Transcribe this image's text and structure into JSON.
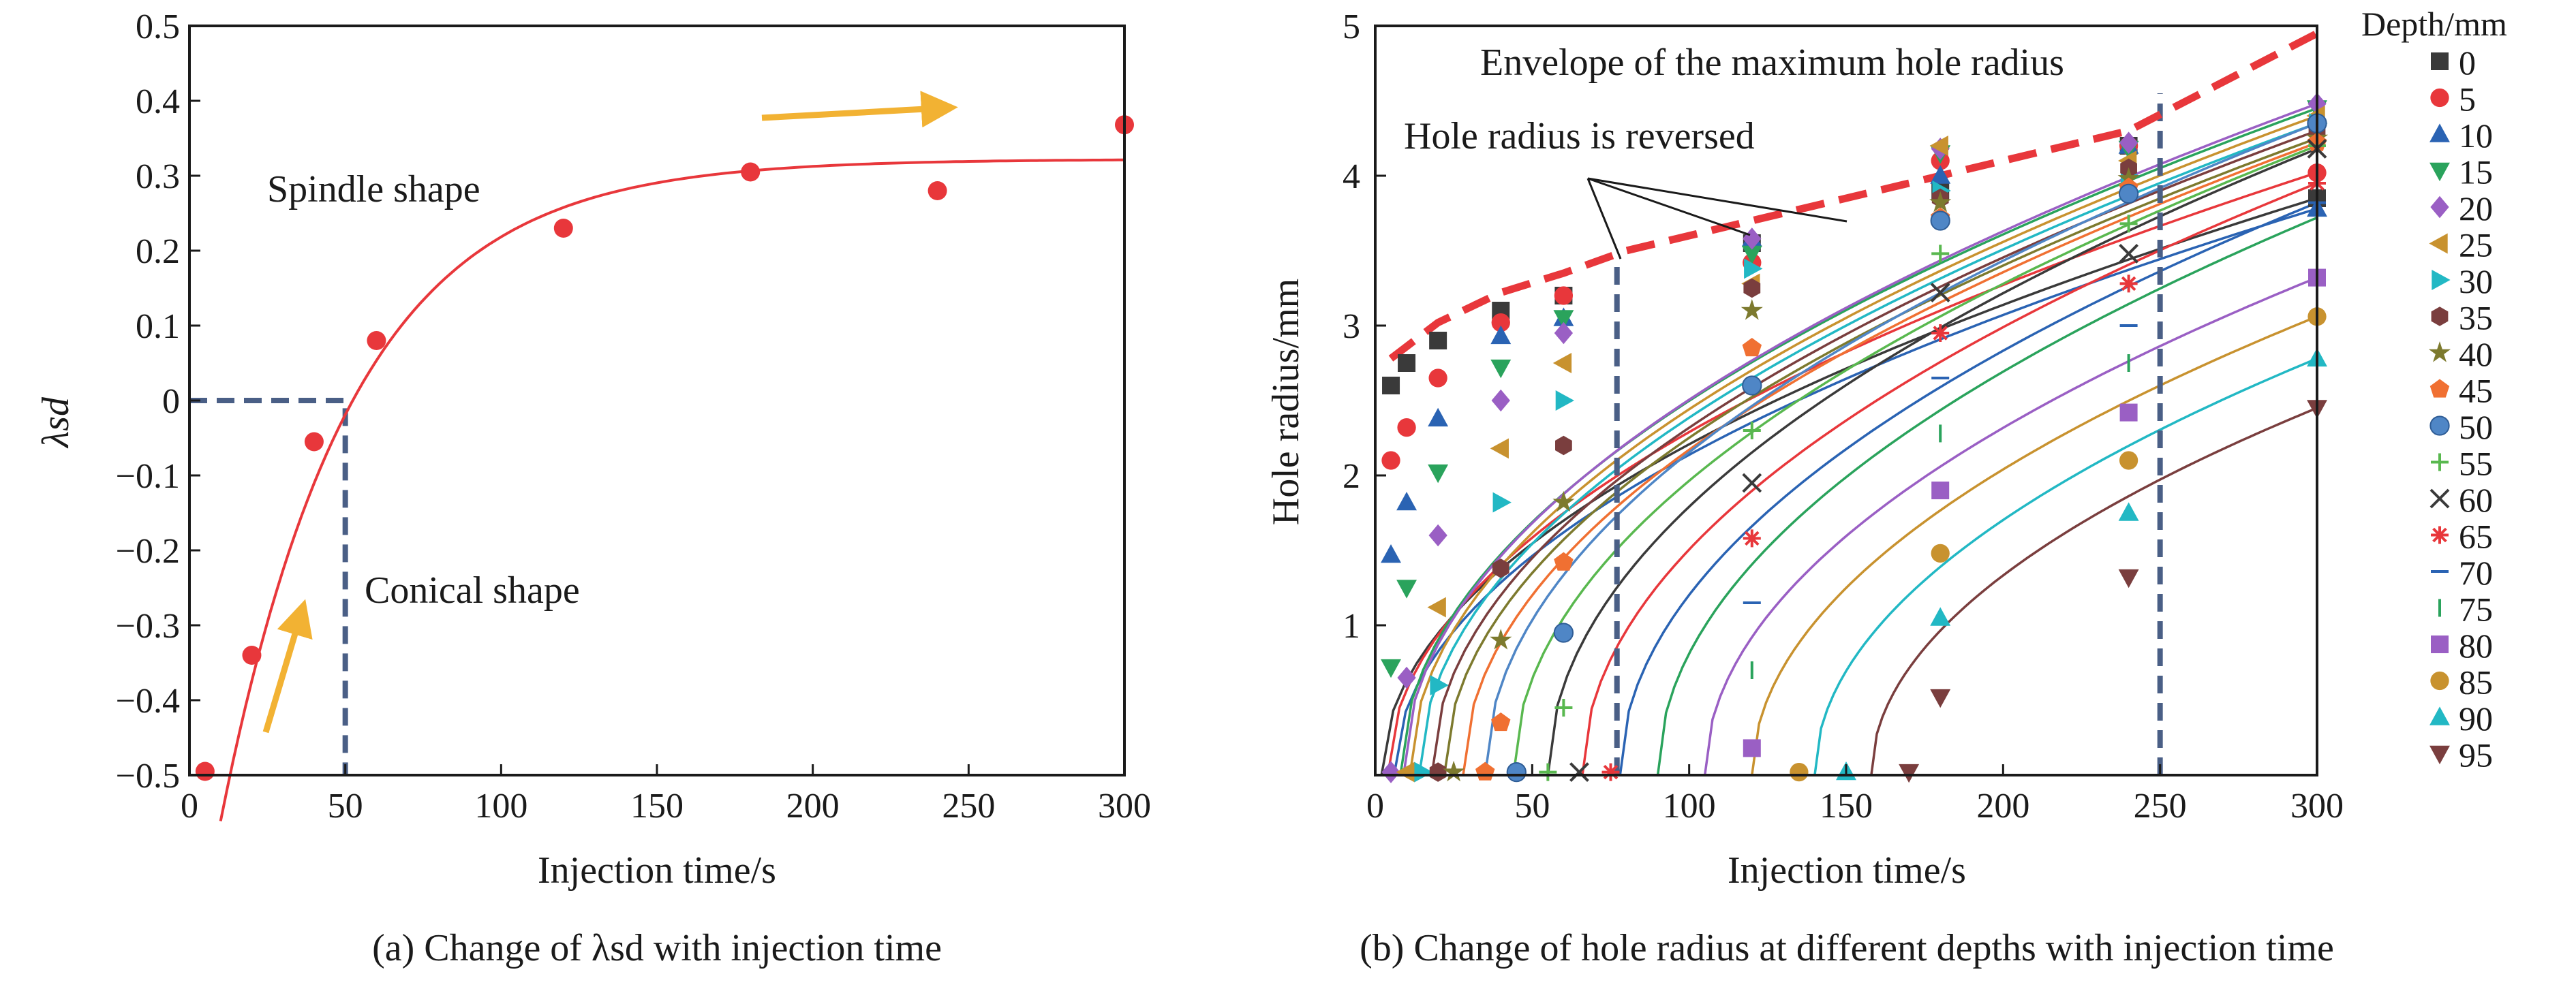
{
  "colors": {
    "axis": "#1a1a1a",
    "fit_a": "#e8373b",
    "points_a": "#e8373b",
    "dashed_guides": "#4a5f86",
    "arrow": "#f2b233",
    "envelope": "#e8373b"
  },
  "chart_data": [
    {
      "type": "scatter",
      "caption": "(a) Change of λsd with injection time",
      "xlabel": "Injection time/s",
      "ylabel": "λsd",
      "xlim": [
        0,
        300
      ],
      "ylim": [
        -0.5,
        0.5
      ],
      "xticks": [
        0,
        50,
        100,
        150,
        200,
        250,
        300
      ],
      "yticks": [
        -0.5,
        -0.4,
        -0.3,
        -0.2,
        -0.1,
        0,
        0.1,
        0.2,
        0.3,
        0.4,
        0.5
      ],
      "ytick_labels": [
        "−0.5",
        "−0.4",
        "−0.3",
        "−0.2",
        "−0.1",
        "0",
        "0.1",
        "0.2",
        "0.3",
        "0.4",
        "0.5"
      ],
      "points": [
        {
          "x": 5,
          "y": -0.495
        },
        {
          "x": 20,
          "y": -0.34
        },
        {
          "x": 40,
          "y": -0.055
        },
        {
          "x": 60,
          "y": 0.08
        },
        {
          "x": 120,
          "y": 0.23
        },
        {
          "x": 180,
          "y": 0.305
        },
        {
          "x": 240,
          "y": 0.28
        },
        {
          "x": 300,
          "y": 0.368
        }
      ],
      "fit_curve": {
        "asymptote": 0.322,
        "amplitude": 0.995,
        "tau": 42,
        "x0": 5
      },
      "guide_point": {
        "x": 50,
        "y": 0
      },
      "annotations": [
        "Spindle shape",
        "Conical shape"
      ],
      "grid": false
    },
    {
      "type": "scatter",
      "caption": "(b) Change of hole radius at different depths with injection time",
      "xlabel": "Injection time/s",
      "ylabel": "Hole radius/mm",
      "xlim": [
        0,
        300
      ],
      "ylim": [
        0,
        5
      ],
      "xticks": [
        0,
        50,
        100,
        150,
        200,
        250,
        300
      ],
      "yticks": [
        1,
        2,
        3,
        4,
        5
      ],
      "legend_title": "Depth/mm",
      "legend_position": "right",
      "vertical_guides": [
        77,
        250
      ],
      "annotations": [
        "Envelope of the maximum hole radius",
        "Hole radius is reversed"
      ],
      "envelope": [
        [
          5,
          2.78
        ],
        [
          20,
          3.02
        ],
        [
          40,
          3.22
        ],
        [
          60,
          3.35
        ],
        [
          80,
          3.5
        ],
        [
          120,
          3.7
        ],
        [
          180,
          4.0
        ],
        [
          240,
          4.3
        ],
        [
          300,
          4.95
        ]
      ],
      "series": [
        {
          "name": "0",
          "marker": "square",
          "color": "#3a3a3a",
          "t0": 2,
          "points": [
            [
              5,
              2.6
            ],
            [
              10,
              2.75
            ],
            [
              20,
              2.9
            ],
            [
              40,
              3.1
            ],
            [
              60,
              3.2
            ],
            [
              120,
              3.55
            ],
            [
              180,
              3.9
            ],
            [
              240,
              4.2
            ],
            [
              300,
              3.85
            ]
          ]
        },
        {
          "name": "5",
          "marker": "circle",
          "color": "#e8373b",
          "t0": 4,
          "points": [
            [
              5,
              2.1
            ],
            [
              10,
              2.32
            ],
            [
              20,
              2.65
            ],
            [
              40,
              3.02
            ],
            [
              60,
              3.2
            ],
            [
              120,
              3.42
            ],
            [
              180,
              4.1
            ],
            [
              240,
              4.2
            ],
            [
              300,
              4.02
            ]
          ]
        },
        {
          "name": "10",
          "marker": "triangle",
          "color": "#2a63b3",
          "t0": 6,
          "points": [
            [
              5,
              1.47
            ],
            [
              10,
              1.82
            ],
            [
              20,
              2.38
            ],
            [
              40,
              2.93
            ],
            [
              60,
              3.05
            ],
            [
              120,
              3.58
            ],
            [
              180,
              4.0
            ],
            [
              240,
              4.2
            ],
            [
              300,
              3.78
            ]
          ]
        },
        {
          "name": "15",
          "marker": "tri-down",
          "color": "#2aa35c",
          "t0": 8,
          "points": [
            [
              5,
              0.72
            ],
            [
              10,
              1.25
            ],
            [
              20,
              2.02
            ],
            [
              40,
              2.72
            ],
            [
              60,
              3.05
            ],
            [
              120,
              3.48
            ],
            [
              180,
              4.15
            ],
            [
              240,
              4.18
            ],
            [
              300,
              4.45
            ]
          ]
        },
        {
          "name": "20",
          "marker": "diamond",
          "color": "#9a5fc4",
          "t0": 9,
          "points": [
            [
              5,
              0.02
            ],
            [
              10,
              0.65
            ],
            [
              20,
              1.6
            ],
            [
              40,
              2.5
            ],
            [
              60,
              2.95
            ],
            [
              120,
              3.58
            ],
            [
              180,
              4.18
            ],
            [
              240,
              4.22
            ],
            [
              300,
              4.48
            ]
          ]
        },
        {
          "name": "25",
          "marker": "tri-left",
          "color": "#c8922f",
          "t0": 11,
          "points": [
            [
              10,
              0.02
            ],
            [
              20,
              1.12
            ],
            [
              40,
              2.18
            ],
            [
              60,
              2.75
            ],
            [
              120,
              3.28
            ],
            [
              180,
              4.2
            ],
            [
              240,
              4.1
            ],
            [
              300,
              4.4
            ]
          ]
        },
        {
          "name": "30",
          "marker": "tri-right",
          "color": "#22b8c4",
          "t0": 14,
          "points": [
            [
              15,
              0.02
            ],
            [
              20,
              0.6
            ],
            [
              40,
              1.82
            ],
            [
              60,
              2.5
            ],
            [
              120,
              3.38
            ],
            [
              180,
              3.9
            ],
            [
              240,
              4.0
            ],
            [
              300,
              4.35
            ]
          ]
        },
        {
          "name": "35",
          "marker": "hexagon",
          "color": "#7a3e3e",
          "t0": 18,
          "points": [
            [
              20,
              0.02
            ],
            [
              40,
              1.38
            ],
            [
              60,
              2.2
            ],
            [
              120,
              3.25
            ],
            [
              180,
              3.85
            ],
            [
              240,
              4.05
            ],
            [
              300,
              4.3
            ]
          ]
        },
        {
          "name": "40",
          "marker": "star",
          "color": "#7d7a2e",
          "t0": 22,
          "points": [
            [
              25,
              0.02
            ],
            [
              40,
              0.9
            ],
            [
              60,
              1.82
            ],
            [
              120,
              3.1
            ],
            [
              180,
              3.82
            ],
            [
              240,
              3.98
            ],
            [
              300,
              4.25
            ]
          ]
        },
        {
          "name": "45",
          "marker": "pentagon",
          "color": "#f07032",
          "t0": 28,
          "points": [
            [
              35,
              0.02
            ],
            [
              40,
              0.35
            ],
            [
              60,
              1.42
            ],
            [
              120,
              2.85
            ],
            [
              180,
              3.72
            ],
            [
              240,
              3.92
            ],
            [
              300,
              4.22
            ]
          ]
        },
        {
          "name": "50",
          "marker": "ball",
          "color": "#4f86c6",
          "t0": 35,
          "points": [
            [
              45,
              0.02
            ],
            [
              60,
              0.95
            ],
            [
              120,
              2.6
            ],
            [
              180,
              3.7
            ],
            [
              240,
              3.88
            ],
            [
              300,
              4.35
            ]
          ]
        },
        {
          "name": "55",
          "marker": "plus",
          "color": "#59b84f",
          "t0": 44,
          "points": [
            [
              55,
              0.02
            ],
            [
              60,
              0.45
            ],
            [
              120,
              2.3
            ],
            [
              180,
              3.48
            ],
            [
              240,
              3.68
            ],
            [
              300,
              4.2
            ]
          ]
        },
        {
          "name": "60",
          "marker": "cross",
          "color": "#3a3a3a",
          "t0": 55,
          "points": [
            [
              65,
              0.02
            ],
            [
              120,
              1.95
            ],
            [
              180,
              3.22
            ],
            [
              240,
              3.48
            ],
            [
              300,
              4.18
            ]
          ]
        },
        {
          "name": "65",
          "marker": "asterisk",
          "color": "#e8373b",
          "t0": 66,
          "points": [
            [
              75,
              0.02
            ],
            [
              120,
              1.58
            ],
            [
              180,
              2.95
            ],
            [
              240,
              3.28
            ],
            [
              300,
              3.95
            ]
          ]
        },
        {
          "name": "70",
          "marker": "hline",
          "color": "#2a63b3",
          "t0": 78,
          "points": [
            [
              120,
              1.15
            ],
            [
              180,
              2.65
            ],
            [
              240,
              3.0
            ],
            [
              300,
              3.82
            ]
          ]
        },
        {
          "name": "75",
          "marker": "vline",
          "color": "#2aa35c",
          "t0": 90,
          "points": [
            [
              120,
              0.7
            ],
            [
              180,
              2.28
            ],
            [
              240,
              2.75
            ],
            [
              300,
              3.72
            ]
          ]
        },
        {
          "name": "80",
          "marker": "square",
          "color": "#9a5fc4",
          "t0": 105,
          "points": [
            [
              120,
              0.18
            ],
            [
              180,
              1.9
            ],
            [
              240,
              2.42
            ],
            [
              300,
              3.32
            ]
          ]
        },
        {
          "name": "85",
          "marker": "circle",
          "color": "#c8922f",
          "t0": 120,
          "points": [
            [
              135,
              0.02
            ],
            [
              180,
              1.48
            ],
            [
              240,
              2.1
            ],
            [
              300,
              3.06
            ]
          ]
        },
        {
          "name": "90",
          "marker": "triangle",
          "color": "#22b8c4",
          "t0": 140,
          "points": [
            [
              150,
              0.02
            ],
            [
              180,
              1.05
            ],
            [
              240,
              1.75
            ],
            [
              300,
              2.78
            ]
          ]
        },
        {
          "name": "95",
          "marker": "tri-down",
          "color": "#7a3e3e",
          "t0": 158,
          "points": [
            [
              170,
              0.02
            ],
            [
              180,
              0.52
            ],
            [
              240,
              1.32
            ],
            [
              300,
              2.45
            ]
          ]
        }
      ],
      "grid": false
    }
  ]
}
